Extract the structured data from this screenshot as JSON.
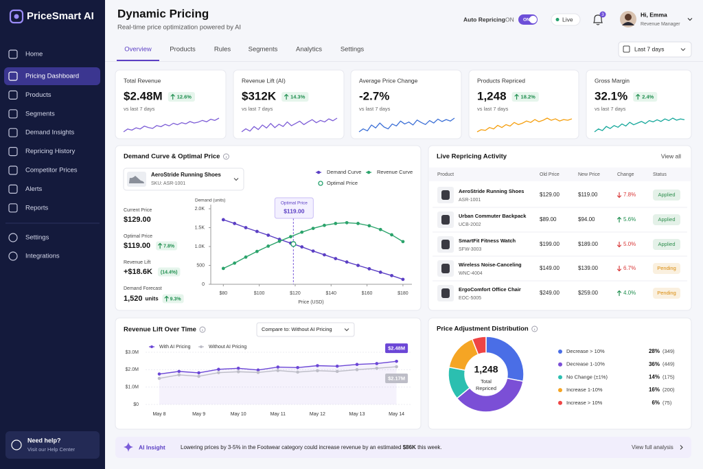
{
  "sidebar": {
    "brand": "PriceSmart AI",
    "nav": [
      "Home",
      "Pricing Dashboard",
      "Products",
      "Segments",
      "Demand Insights",
      "Repricing History",
      "Competitor Prices",
      "Alerts",
      "Reports"
    ],
    "active": 1,
    "nav_secondary": [
      "Settings",
      "Integrations"
    ],
    "help": {
      "title": "Need help?",
      "subtitle": "Visit our Help Center"
    }
  },
  "header": {
    "title": "Dynamic Pricing",
    "subtitle": "Real-time price optimization powered by AI",
    "auto_repricing": "Auto Repricing",
    "state": "ON",
    "toggle": "ON",
    "status": "Live",
    "notifications": 3,
    "user": "Hi, Emma",
    "role": "Revenue Manager"
  },
  "tabs": {
    "items": [
      "Overview",
      "Products",
      "Rules",
      "Segments",
      "Analytics",
      "Settings"
    ],
    "active": 0,
    "date_range": "Last 7 days"
  },
  "kpis": [
    {
      "label": "Total Revenue",
      "value": "$2.48M",
      "change": "12.6%",
      "period": "vs last 7 days",
      "color": "#7c5cd6",
      "sparkline": [
        4,
        5,
        4.6,
        5.4,
        5,
        6,
        5.5,
        5.2,
        6.2,
        5.8,
        6.6,
        6.1,
        7,
        6.5,
        7.2,
        6.8,
        7.6,
        7.1,
        7.4,
        8,
        7.5,
        8.4,
        8,
        8.8
      ]
    },
    {
      "label": "Revenue Lift (AI)",
      "value": "$312K",
      "change": "14.3%",
      "period": "vs last 7 days",
      "color": "#7c5cd6",
      "sparkline": [
        4,
        4.8,
        4.2,
        5.4,
        4.6,
        5.8,
        5,
        6.2,
        5.1,
        6,
        5.4,
        6.6,
        5.6,
        6.2,
        6.8,
        5.9,
        6.6,
        7.2,
        6.4,
        7,
        6.6,
        7.4,
        6.9,
        7.6
      ]
    },
    {
      "label": "Average Price Change",
      "value": "-2.7%",
      "period": "vs last 7 days",
      "color": "#3b6fd6",
      "sparkline": [
        5,
        5.6,
        5.2,
        6.4,
        5.8,
        6.8,
        6,
        5.6,
        6.6,
        6.2,
        7.2,
        6.6,
        7,
        6.4,
        7.4,
        6.9,
        6.5,
        7.3,
        6.8,
        7.6,
        7.1,
        7.5,
        7.2,
        7.8
      ]
    },
    {
      "label": "Products Repriced",
      "value": "1,248",
      "change": "18.2%",
      "period": "vs last 7 days",
      "color": "#f59e0b",
      "sparkline": [
        4,
        4.6,
        4.4,
        5.2,
        4.8,
        5.8,
        5.2,
        6,
        5.6,
        6.6,
        6,
        6.4,
        7,
        6.6,
        7.4,
        6.8,
        7.2,
        7.8,
        7.2,
        7.6,
        7,
        7.4,
        7.2,
        7.6
      ]
    },
    {
      "label": "Gross Margin",
      "value": "32.1%",
      "change": "2.4%",
      "period": "vs last 7 days",
      "color": "#14a79a",
      "sparkline": [
        4.5,
        5.2,
        4.8,
        5.8,
        5.3,
        6,
        5.6,
        6.4,
        5.9,
        6.8,
        6.2,
        6.6,
        7,
        6.5,
        7.2,
        6.9,
        7.4,
        7,
        7.6,
        7.2,
        7.8,
        7.3,
        7.6,
        7.4
      ]
    }
  ],
  "demand": {
    "title": "Demand Curve & Optimal Price",
    "product": "AeroStride Running Shoes",
    "sku": "SKU: ASR-1001",
    "stats": [
      {
        "label": "Current Price",
        "value": "$129.00"
      },
      {
        "label": "Optimal Price",
        "value": "$119.00",
        "change": "7.8%"
      },
      {
        "label": "Revenue Lift",
        "value": "+$18.6K",
        "change": "(14.4%)"
      },
      {
        "label": "Demand Forecast",
        "value": "1,520",
        "unit": "units",
        "change": "9.3%"
      }
    ],
    "chart": {
      "type": "line",
      "x": [
        80,
        86.25,
        92.5,
        98.75,
        105,
        111.25,
        117.5,
        123.75,
        130,
        136.25,
        142.5,
        148.75,
        155,
        161.25,
        167.5,
        173.75,
        180
      ],
      "series": [
        {
          "name": "Demand Curve",
          "color": "#5b3fc4",
          "values": [
            1710,
            1610,
            1500,
            1400,
            1300,
            1190,
            1090,
            990,
            880,
            780,
            680,
            590,
            500,
            410,
            320,
            230,
            130
          ]
        },
        {
          "name": "Revenue Curve",
          "color": "#2ba36b",
          "values": [
            420,
            560,
            720,
            870,
            1010,
            1140,
            1260,
            1380,
            1480,
            1560,
            1610,
            1630,
            1610,
            1550,
            1450,
            1310,
            1130
          ]
        }
      ],
      "optimal": {
        "name": "Optimal Price",
        "x": 119,
        "value_label": "$119.00"
      },
      "xlabel": "Price (USD)",
      "ylabel": "Demand (units)",
      "xlim": [
        73,
        185
      ],
      "ylim": [
        0,
        2000
      ],
      "xticks": [
        {
          "value": 80,
          "label": "$80"
        },
        {
          "value": 100,
          "label": "$100"
        },
        {
          "value": 120,
          "label": "$120"
        },
        {
          "value": 140,
          "label": "$140"
        },
        {
          "value": 160,
          "label": "$160"
        },
        {
          "value": 180,
          "label": "$180"
        }
      ],
      "yticks": [
        0,
        500,
        {
          "value": 1000,
          "label": "1.0K"
        },
        {
          "value": 1500,
          "label": "1.5K"
        },
        {
          "value": 2000,
          "label": "2.0K"
        }
      ]
    }
  },
  "live": {
    "title": "Live Repricing Activity",
    "action": "View all",
    "columns": [
      "Product",
      "Old Price",
      "New Price",
      "Change",
      "Status"
    ],
    "rows": [
      {
        "name": "AeroStride Running Shoes",
        "sku": "ASR-1001",
        "old": "$129.00",
        "new": "$119.00",
        "change": "7.8%",
        "trend": "down",
        "status": "Applied",
        "status_color": "#2f8f4e"
      },
      {
        "name": "Urban Commuter Backpack",
        "sku": "UCB-2002",
        "old": "$89.00",
        "new": "$94.00",
        "change": "5.6%",
        "trend": "up",
        "status": "Applied",
        "status_color": "#2f8f4e"
      },
      {
        "name": "SmartFit Fitness Watch",
        "sku": "SFW-3003",
        "old": "$199.00",
        "new": "$189.00",
        "change": "5.0%",
        "trend": "down",
        "status": "Applied",
        "status_color": "#2f8f4e"
      },
      {
        "name": "Wireless Noise-Canceling",
        "sku": "WNC-4004",
        "old": "$149.00",
        "new": "$139.00",
        "change": "6.7%",
        "trend": "down",
        "status": "Pending",
        "status_color": "#d98a0b"
      },
      {
        "name": "ErgoComfort Office Chair",
        "sku": "EOC-5005",
        "old": "$249.00",
        "new": "$259.00",
        "change": "4.0%",
        "trend": "up",
        "status": "Pending",
        "status_color": "#d98a0b"
      }
    ]
  },
  "revenue": {
    "title": "Revenue Lift Over Time",
    "compare": "Compare to: Without AI Pricing",
    "chart": {
      "type": "line",
      "categories": [
        "May 8",
        null,
        "May 9",
        null,
        "May 10",
        null,
        "May 11",
        null,
        "May 12",
        null,
        "May 13",
        null,
        "May 14"
      ],
      "series": [
        {
          "name": "With AI Pricing",
          "color": "#6b46d6",
          "values": [
            1750000,
            1900000,
            1820000,
            2020000,
            2080000,
            1980000,
            2150000,
            2120000,
            2230000,
            2200000,
            2300000,
            2350000,
            2480000
          ],
          "value_labels": [
            null,
            null,
            null,
            null,
            null,
            null,
            null,
            null,
            null,
            null,
            null,
            null,
            "$2.48M"
          ]
        },
        {
          "name": "Without AI Pricing",
          "color": "#bdbdc7",
          "values": [
            1500000,
            1700000,
            1620000,
            1830000,
            1880000,
            1840000,
            1950000,
            1860000,
            1940000,
            1900000,
            2000000,
            2080000,
            2170000
          ],
          "value_labels": [
            null,
            null,
            null,
            null,
            null,
            null,
            null,
            null,
            null,
            null,
            null,
            null,
            "$2.17M"
          ]
        }
      ],
      "ylim": [
        0,
        3000000
      ],
      "yticks": [
        {
          "value": 0,
          "label": "$0"
        },
        {
          "value": 1000000,
          "label": "$1.0M"
        },
        {
          "value": 2000000,
          "label": "$2.0M"
        },
        {
          "value": 3000000,
          "label": "$3.0M"
        }
      ],
      "grid": true
    }
  },
  "distribution": {
    "title": "Price Adjustment Distribution",
    "center_value": "1,248",
    "center_label": [
      "Total",
      "Repriced"
    ],
    "chart": {
      "type": "pie",
      "categories": [
        "Decrease > 10%",
        "Decrease 1-10%",
        "No Change (±1%)",
        "Increase 1-10%",
        "Increase > 10%"
      ],
      "values": [
        28,
        36,
        14,
        16,
        6
      ],
      "value_labels": [
        "28%",
        "36%",
        "14%",
        "16%",
        "6%"
      ],
      "counts": [
        "(349)",
        "(449)",
        "(175)",
        "(200)",
        "(75)"
      ],
      "colors": [
        "#4a6ee6",
        "#7b4fd6",
        "#2bbfb0",
        "#f5a524",
        "#ef4444"
      ]
    }
  },
  "insight": {
    "label": "AI Insight",
    "text": [
      "Lowering prices by 3-5% in the Footwear category could increase revenue by an estimated ",
      "$86K",
      " this week."
    ],
    "action": "View full analysis"
  }
}
